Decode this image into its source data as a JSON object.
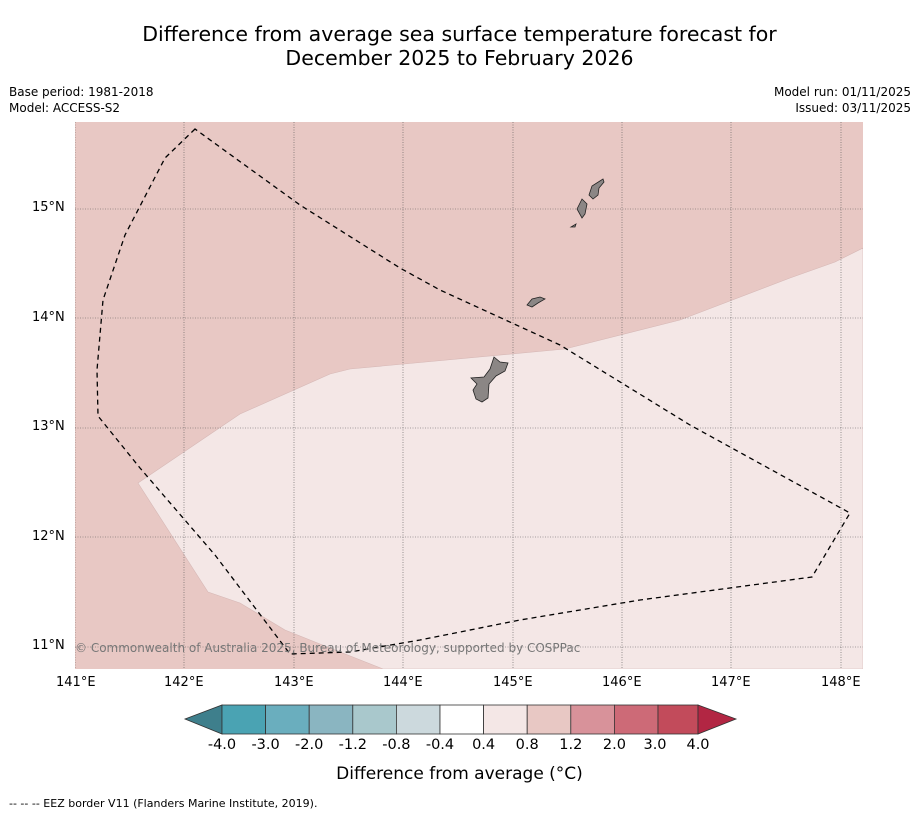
{
  "title": {
    "line1": "Difference from average sea surface temperature forecast for",
    "line2": "December 2025 to February 2026"
  },
  "meta": {
    "base_period": "Base period: 1981-2018",
    "model": "Model: ACCESS-S2",
    "model_run": "Model run: 01/11/2025",
    "issued": "Issued: 03/11/2025"
  },
  "map": {
    "lat_labels": [
      "15°N",
      "14°N",
      "13°N",
      "12°N",
      "11°N"
    ],
    "lon_labels": [
      "141°E",
      "142°E",
      "143°E",
      "144°E",
      "145°E",
      "146°E",
      "147°E",
      "148°E"
    ],
    "copyright": "© Commonwealth of Australia 2025, Bureau of Meteorology, supported by COSPPac",
    "anomaly_classes": [
      "0.8 to 1.2",
      "0.4 to 0.8"
    ]
  },
  "colorbar": {
    "labels": [
      "-4.0",
      "-3.0",
      "-2.0",
      "-1.2",
      "-0.8",
      "-0.4",
      "0.4",
      "0.8",
      "1.2",
      "2.0",
      "3.0",
      "4.0"
    ],
    "colors": [
      "#3e7f8c",
      "#4aa3b3",
      "#6aaebe",
      "#8ab5c1",
      "#a9c8cc",
      "#ccd9dd",
      "#ffffff",
      "#f4e7e6",
      "#e8c8c4",
      "#d8929a",
      "#cd6a77",
      "#c24b5b",
      "#b22643"
    ],
    "title": "Difference from average (°C)"
  },
  "colors": {
    "zone_high": "#e8c8c4",
    "zone_low": "#f4e7e6",
    "land": "#8b8685",
    "grid": "#666666"
  },
  "footnote": "--  --  -- EEZ border V11 (Flanders Marine Institute, 2019)."
}
